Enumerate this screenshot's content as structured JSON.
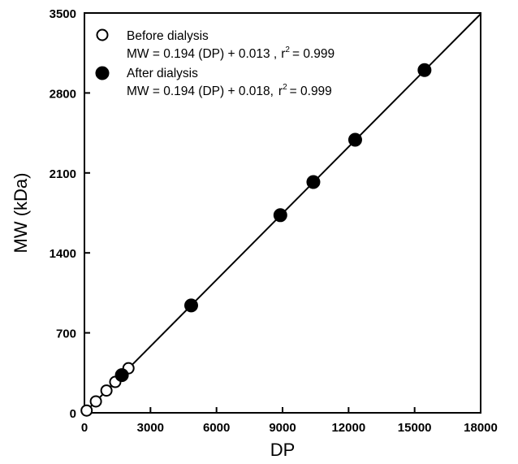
{
  "chart_data": {
    "type": "scatter",
    "xlabel": "DP",
    "ylabel": "MW (kDa)",
    "xlim": [
      0,
      18000
    ],
    "ylim": [
      0,
      3500
    ],
    "x_ticks": [
      0,
      3000,
      6000,
      9000,
      12000,
      15000,
      18000
    ],
    "y_ticks": [
      0,
      700,
      1400,
      2100,
      2800,
      3500
    ],
    "x_tick_labels": [
      "0",
      "3000",
      "6000",
      "9000",
      "12000",
      "15000",
      "18000"
    ],
    "y_tick_labels": [
      "0",
      "700",
      "1400",
      "2100",
      "2800",
      "3500"
    ],
    "grid": false,
    "legend_position": "top-left",
    "series": [
      {
        "name": "Before dialysis",
        "equation": "MW = 0.194 (DP) + 0.013 ,",
        "r2_prefix": "r",
        "r2_sup": "2",
        "r2_value": "= 0.999",
        "marker": "open-circle",
        "x": [
          100,
          520,
          1000,
          1400,
          2000
        ],
        "y": [
          20,
          100,
          195,
          270,
          390
        ]
      },
      {
        "name": "After dialysis",
        "equation": "MW = 0.194 (DP) + 0.018,",
        "r2_prefix": "r",
        "r2_sup": "2",
        "r2_value": "= 0.999",
        "marker": "filled-circle",
        "x": [
          1700,
          4850,
          8900,
          10400,
          12300,
          15450
        ],
        "y": [
          330,
          940,
          1730,
          2020,
          2390,
          3000
        ]
      }
    ],
    "fit_line": {
      "slope": 0.194,
      "intercept": 0.013
    }
  }
}
